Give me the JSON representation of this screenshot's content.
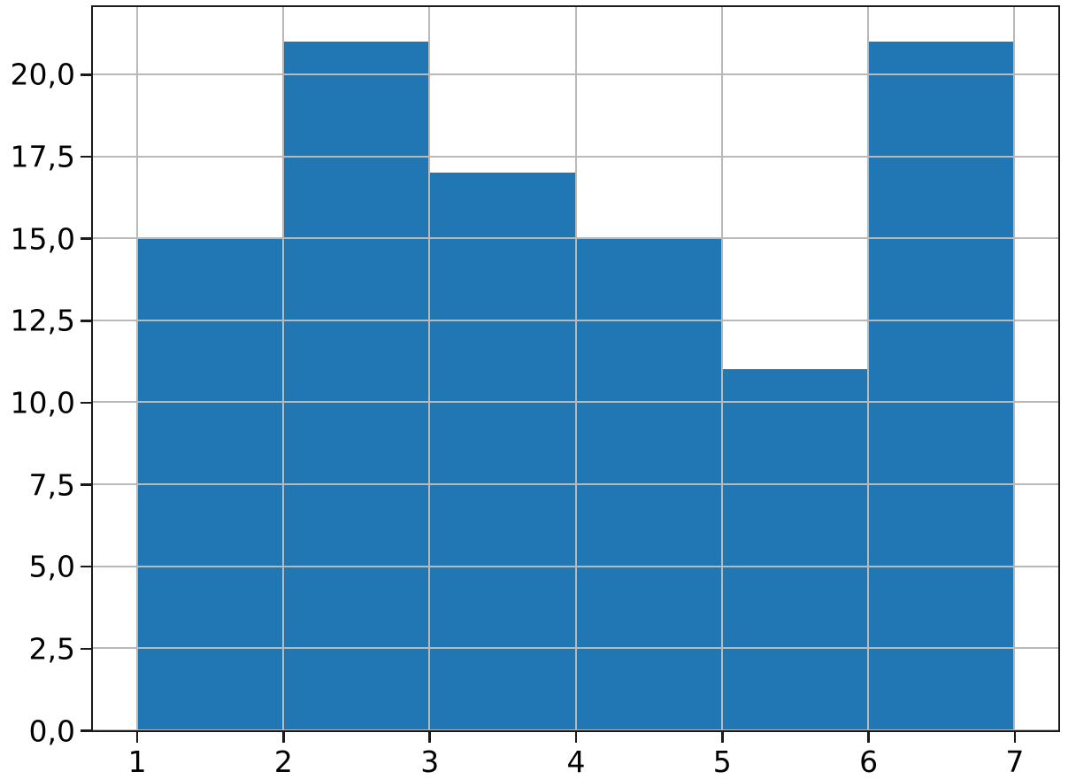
{
  "chart_data": {
    "type": "bar",
    "subtype": "histogram",
    "title": "",
    "xlabel": "",
    "ylabel": "",
    "bin_edges": [
      1,
      2,
      3,
      4,
      5,
      6,
      7
    ],
    "values": [
      15,
      21,
      17,
      15,
      11,
      21
    ],
    "x_ticks": [
      1,
      2,
      3,
      4,
      5,
      6,
      7
    ],
    "x_tick_labels": [
      "1",
      "2",
      "3",
      "4",
      "5",
      "6",
      "7"
    ],
    "y_ticks": [
      0,
      2.5,
      5,
      7.5,
      10,
      12.5,
      15,
      17.5,
      20
    ],
    "y_tick_labels": [
      "0,0",
      "2,5",
      "5,0",
      "7,5",
      "10,0",
      "12,5",
      "15,0",
      "17,5",
      "20,0"
    ],
    "xlim": [
      0.7,
      7.3
    ],
    "ylim": [
      0,
      22.05
    ],
    "grid": true,
    "grid_above_bars": true,
    "legend": null,
    "colors": {
      "bar": "#2176b4",
      "grid": "#b9b9b9",
      "spine": "#1a1a1a",
      "tick_text": "#000000",
      "background": "#ffffff"
    }
  }
}
